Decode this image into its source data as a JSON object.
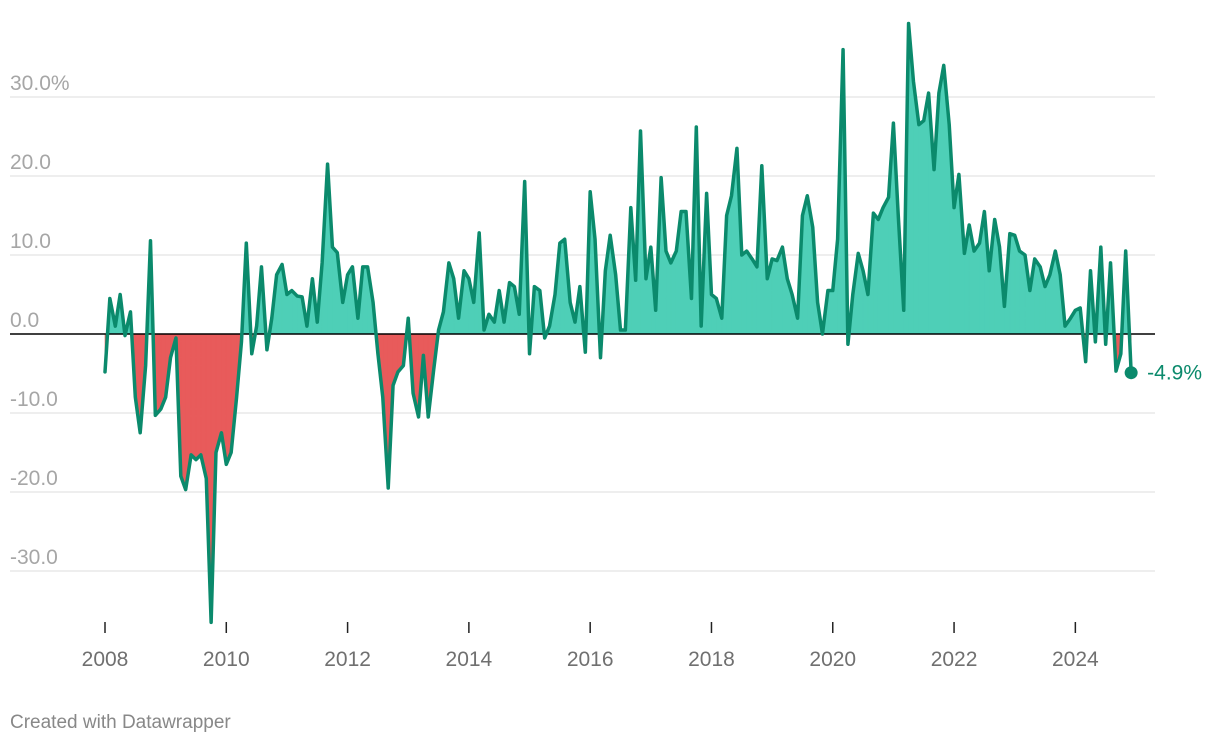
{
  "chart_data": {
    "type": "area",
    "title": "",
    "xlabel": "",
    "ylabel": "",
    "xlim": [
      2008,
      2025
    ],
    "ylim": [
      -37,
      39.5
    ],
    "y_ticks": [
      {
        "value": 30,
        "label": "30.0%"
      },
      {
        "value": 20,
        "label": "20.0"
      },
      {
        "value": 10,
        "label": "10.0"
      },
      {
        "value": 0,
        "label": "0.0"
      },
      {
        "value": -10,
        "label": "-10.0"
      },
      {
        "value": -20,
        "label": "-20.0"
      },
      {
        "value": -30,
        "label": "-30.0"
      }
    ],
    "x_ticks": [
      {
        "value": 2008,
        "label": "2008"
      },
      {
        "value": 2010,
        "label": "2010"
      },
      {
        "value": 2012,
        "label": "2012"
      },
      {
        "value": 2014,
        "label": "2014"
      },
      {
        "value": 2016,
        "label": "2016"
      },
      {
        "value": 2018,
        "label": "2018"
      },
      {
        "value": 2020,
        "label": "2020"
      },
      {
        "value": 2022,
        "label": "2022"
      },
      {
        "value": 2024,
        "label": "2024"
      }
    ],
    "grid": true,
    "colors": {
      "line": "#0b8a6c",
      "positive_fill": "#4ecfb7",
      "negative_fill": "#e85b5b",
      "zero_line": "#000000",
      "grid": "#e4e4e4",
      "tick": "#222222"
    },
    "end_label": "-4.9%",
    "series": [
      {
        "points": [
          [
            2008.0,
            -4.8
          ],
          [
            2008.08,
            4.5
          ],
          [
            2008.17,
            1.0
          ],
          [
            2008.25,
            5.0
          ],
          [
            2008.33,
            -0.2
          ],
          [
            2008.42,
            2.8
          ],
          [
            2008.5,
            -8.0
          ],
          [
            2008.58,
            -12.5
          ],
          [
            2008.67,
            -4.0
          ],
          [
            2008.75,
            11.8
          ],
          [
            2008.83,
            -10.3
          ],
          [
            2008.92,
            -9.5
          ],
          [
            2009.0,
            -8.0
          ],
          [
            2009.08,
            -3.0
          ],
          [
            2009.17,
            -0.5
          ],
          [
            2009.25,
            -18.0
          ],
          [
            2009.33,
            -19.7
          ],
          [
            2009.42,
            -15.3
          ],
          [
            2009.5,
            -15.9
          ],
          [
            2009.58,
            -15.3
          ],
          [
            2009.67,
            -18.3
          ],
          [
            2009.75,
            -36.5
          ],
          [
            2009.83,
            -15.0
          ],
          [
            2009.92,
            -12.5
          ],
          [
            2010.0,
            -16.5
          ],
          [
            2010.08,
            -15.0
          ],
          [
            2010.17,
            -8.0
          ],
          [
            2010.25,
            -1.0
          ],
          [
            2010.33,
            11.5
          ],
          [
            2010.42,
            -2.5
          ],
          [
            2010.5,
            1.0
          ],
          [
            2010.58,
            8.5
          ],
          [
            2010.67,
            -2.0
          ],
          [
            2010.75,
            2.0
          ],
          [
            2010.83,
            7.5
          ],
          [
            2010.92,
            8.8
          ],
          [
            2011.0,
            5.0
          ],
          [
            2011.08,
            5.5
          ],
          [
            2011.17,
            4.8
          ],
          [
            2011.25,
            4.7
          ],
          [
            2011.33,
            1.0
          ],
          [
            2011.42,
            7.0
          ],
          [
            2011.5,
            1.5
          ],
          [
            2011.58,
            9.0
          ],
          [
            2011.67,
            21.5
          ],
          [
            2011.75,
            11.0
          ],
          [
            2011.83,
            10.3
          ],
          [
            2011.92,
            4.0
          ],
          [
            2012.0,
            7.5
          ],
          [
            2012.08,
            8.5
          ],
          [
            2012.17,
            2.0
          ],
          [
            2012.25,
            8.5
          ],
          [
            2012.33,
            8.5
          ],
          [
            2012.42,
            4.0
          ],
          [
            2012.5,
            -2.5
          ],
          [
            2012.58,
            -8.0
          ],
          [
            2012.67,
            -19.5
          ],
          [
            2012.75,
            -6.5
          ],
          [
            2012.83,
            -4.8
          ],
          [
            2012.92,
            -4.0
          ],
          [
            2013.0,
            2.0
          ],
          [
            2013.08,
            -7.5
          ],
          [
            2013.17,
            -10.5
          ],
          [
            2013.25,
            -2.7
          ],
          [
            2013.33,
            -10.5
          ],
          [
            2013.42,
            -4.5
          ],
          [
            2013.5,
            0.5
          ],
          [
            2013.58,
            2.8
          ],
          [
            2013.67,
            9.0
          ],
          [
            2013.75,
            7.0
          ],
          [
            2013.83,
            2.0
          ],
          [
            2013.92,
            8.0
          ],
          [
            2014.0,
            7.0
          ],
          [
            2014.08,
            4.0
          ],
          [
            2014.17,
            12.8
          ],
          [
            2014.25,
            0.5
          ],
          [
            2014.33,
            2.5
          ],
          [
            2014.42,
            1.5
          ],
          [
            2014.5,
            5.5
          ],
          [
            2014.58,
            1.5
          ],
          [
            2014.67,
            6.5
          ],
          [
            2014.75,
            6.0
          ],
          [
            2014.83,
            2.5
          ],
          [
            2014.92,
            19.3
          ],
          [
            2015.0,
            -2.5
          ],
          [
            2015.08,
            6.0
          ],
          [
            2015.17,
            5.5
          ],
          [
            2015.25,
            -0.5
          ],
          [
            2015.33,
            1.0
          ],
          [
            2015.42,
            5.0
          ],
          [
            2015.5,
            11.5
          ],
          [
            2015.58,
            12.0
          ],
          [
            2015.67,
            4.0
          ],
          [
            2015.75,
            1.5
          ],
          [
            2015.83,
            6.0
          ],
          [
            2015.92,
            -2.3
          ],
          [
            2016.0,
            18.0
          ],
          [
            2016.08,
            12.0
          ],
          [
            2016.17,
            -3.0
          ],
          [
            2016.25,
            8.0
          ],
          [
            2016.33,
            12.5
          ],
          [
            2016.42,
            7.5
          ],
          [
            2016.5,
            0.5
          ],
          [
            2016.58,
            0.5
          ],
          [
            2016.67,
            16.0
          ],
          [
            2016.75,
            6.8
          ],
          [
            2016.83,
            25.7
          ],
          [
            2016.92,
            7.0
          ],
          [
            2017.0,
            11.0
          ],
          [
            2017.08,
            3.0
          ],
          [
            2017.17,
            19.8
          ],
          [
            2017.25,
            10.5
          ],
          [
            2017.33,
            9.0
          ],
          [
            2017.42,
            10.5
          ],
          [
            2017.5,
            15.5
          ],
          [
            2017.58,
            15.5
          ],
          [
            2017.67,
            4.5
          ],
          [
            2017.75,
            26.2
          ],
          [
            2017.83,
            1.0
          ],
          [
            2017.92,
            17.8
          ],
          [
            2018.0,
            5.0
          ],
          [
            2018.08,
            4.5
          ],
          [
            2018.17,
            2.0
          ],
          [
            2018.25,
            15.0
          ],
          [
            2018.33,
            17.5
          ],
          [
            2018.42,
            23.5
          ],
          [
            2018.5,
            10.0
          ],
          [
            2018.58,
            10.5
          ],
          [
            2018.67,
            9.5
          ],
          [
            2018.75,
            8.5
          ],
          [
            2018.83,
            21.3
          ],
          [
            2018.92,
            7.0
          ],
          [
            2019.0,
            9.5
          ],
          [
            2019.08,
            9.3
          ],
          [
            2019.17,
            11.0
          ],
          [
            2019.25,
            7.0
          ],
          [
            2019.33,
            5.0
          ],
          [
            2019.42,
            2.0
          ],
          [
            2019.5,
            15.0
          ],
          [
            2019.58,
            17.5
          ],
          [
            2019.67,
            13.5
          ],
          [
            2019.75,
            4.0
          ],
          [
            2019.83,
            0.0
          ],
          [
            2019.92,
            5.5
          ],
          [
            2020.0,
            5.5
          ],
          [
            2020.08,
            12.0
          ],
          [
            2020.17,
            36.0
          ],
          [
            2020.25,
            -1.3
          ],
          [
            2020.33,
            5.0
          ],
          [
            2020.42,
            10.2
          ],
          [
            2020.5,
            8.0
          ],
          [
            2020.58,
            5.0
          ],
          [
            2020.67,
            15.3
          ],
          [
            2020.75,
            14.5
          ],
          [
            2020.83,
            16.0
          ],
          [
            2020.92,
            17.3
          ],
          [
            2021.0,
            26.7
          ],
          [
            2021.08,
            15.0
          ],
          [
            2021.17,
            3.0
          ],
          [
            2021.25,
            39.3
          ],
          [
            2021.33,
            32.0
          ],
          [
            2021.42,
            26.5
          ],
          [
            2021.5,
            27.0
          ],
          [
            2021.58,
            30.5
          ],
          [
            2021.67,
            20.8
          ],
          [
            2021.75,
            30.5
          ],
          [
            2021.83,
            34.0
          ],
          [
            2021.92,
            26.5
          ],
          [
            2022.0,
            16.0
          ],
          [
            2022.08,
            20.2
          ],
          [
            2022.17,
            10.2
          ],
          [
            2022.25,
            13.8
          ],
          [
            2022.33,
            10.5
          ],
          [
            2022.42,
            11.5
          ],
          [
            2022.5,
            15.5
          ],
          [
            2022.58,
            8.0
          ],
          [
            2022.67,
            14.5
          ],
          [
            2022.75,
            11.0
          ],
          [
            2022.83,
            3.5
          ],
          [
            2022.92,
            12.7
          ],
          [
            2023.0,
            12.5
          ],
          [
            2023.08,
            10.5
          ],
          [
            2023.17,
            10.0
          ],
          [
            2023.25,
            5.5
          ],
          [
            2023.33,
            9.5
          ],
          [
            2023.42,
            8.5
          ],
          [
            2023.5,
            6.0
          ],
          [
            2023.58,
            7.5
          ],
          [
            2023.67,
            10.5
          ],
          [
            2023.75,
            7.5
          ],
          [
            2023.83,
            1.0
          ],
          [
            2023.92,
            2.0
          ],
          [
            2024.0,
            3.0
          ],
          [
            2024.08,
            3.3
          ],
          [
            2024.17,
            -3.5
          ],
          [
            2024.25,
            8.0
          ],
          [
            2024.33,
            -1.0
          ],
          [
            2024.42,
            11.0
          ],
          [
            2024.5,
            -1.3
          ],
          [
            2024.58,
            9.0
          ],
          [
            2024.67,
            -4.7
          ],
          [
            2024.75,
            -2.5
          ],
          [
            2024.83,
            10.5
          ],
          [
            2024.92,
            -4.9
          ]
        ]
      }
    ]
  },
  "footer": {
    "credit": "Created with Datawrapper"
  }
}
